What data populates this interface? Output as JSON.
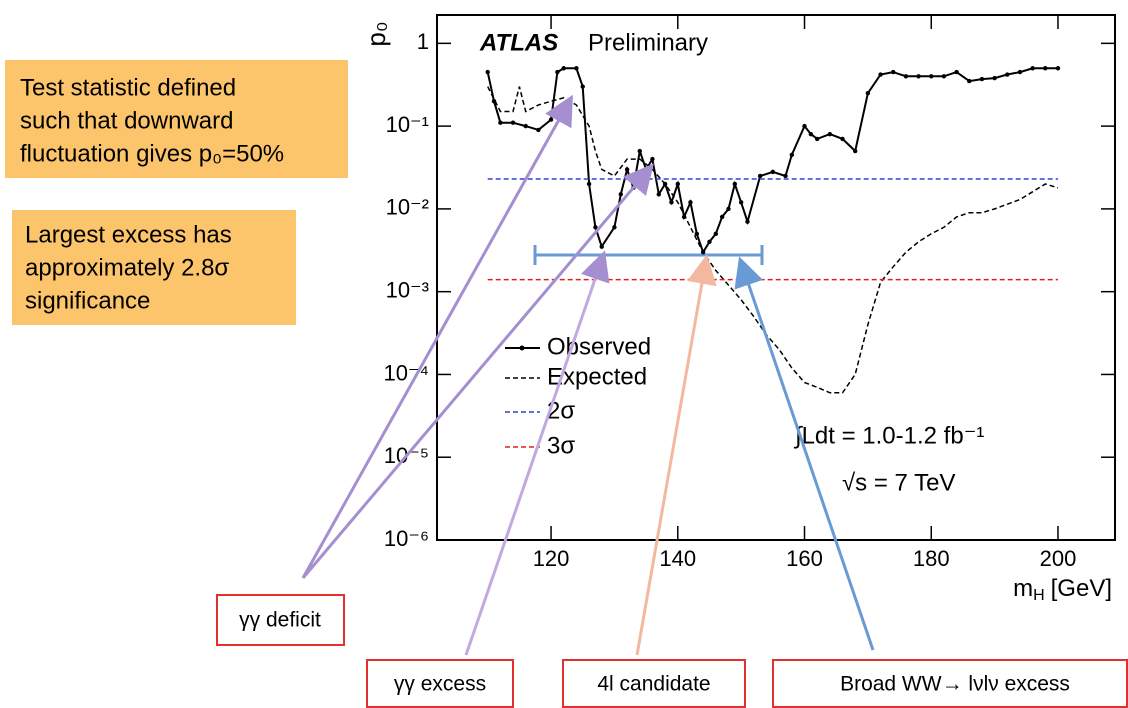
{
  "chart_data": {
    "type": "line",
    "y_label": "p₀",
    "x_label": {
      "symbol": "m",
      "subscript": "H",
      "unit": "[GeV]"
    },
    "experiment": "ATLAS",
    "status": "Preliminary",
    "luminosity": "∫Ldt = 1.0-1.2 fb⁻¹",
    "energy": "√s = 7 TeV",
    "xlim": [
      102,
      209
    ],
    "xticks": [
      120,
      140,
      160,
      180,
      200
    ],
    "ylim": [
      1e-06,
      2.2
    ],
    "log_y": true,
    "yticks": [
      {
        "value": 1,
        "label": "1"
      },
      {
        "value": 0.1,
        "label": "10⁻¹"
      },
      {
        "value": 0.01,
        "label": "10⁻²"
      },
      {
        "value": 0.001,
        "label": "10⁻³"
      },
      {
        "value": 0.0001,
        "label": "10⁻⁴"
      },
      {
        "value": 1e-05,
        "label": "10⁻⁵"
      },
      {
        "value": 1e-06,
        "label": "10⁻⁶"
      }
    ],
    "series": [
      {
        "name": "Observed",
        "color": "#000000",
        "style": "solid-markers",
        "x": [
          110,
          111,
          112,
          114,
          116,
          118,
          120,
          121,
          122,
          124,
          125,
          126,
          127,
          128,
          130,
          131,
          132,
          133,
          134,
          135,
          136,
          137,
          138,
          139,
          140,
          141,
          142,
          143,
          144,
          145,
          146,
          147,
          148,
          149,
          150,
          151,
          153,
          155,
          157,
          158,
          160,
          161,
          162,
          164,
          166,
          168,
          170,
          172,
          174,
          176,
          178,
          180,
          182,
          184,
          186,
          188,
          190,
          192,
          194,
          196,
          198,
          200
        ],
        "values": [
          0.45,
          0.2,
          0.11,
          0.11,
          0.1,
          0.09,
          0.12,
          0.45,
          0.5,
          0.5,
          0.3,
          0.02,
          0.006,
          0.0035,
          0.006,
          0.015,
          0.03,
          0.018,
          0.05,
          0.03,
          0.04,
          0.015,
          0.02,
          0.012,
          0.02,
          0.008,
          0.012,
          0.005,
          0.003,
          0.004,
          0.005,
          0.008,
          0.01,
          0.02,
          0.012,
          0.007,
          0.025,
          0.028,
          0.025,
          0.045,
          0.1,
          0.08,
          0.07,
          0.08,
          0.07,
          0.05,
          0.25,
          0.42,
          0.45,
          0.4,
          0.4,
          0.4,
          0.4,
          0.45,
          0.35,
          0.37,
          0.38,
          0.42,
          0.45,
          0.5,
          0.5,
          0.5
        ]
      },
      {
        "name": "Expected",
        "color": "#000000",
        "style": "dashed",
        "x": [
          110,
          112,
          114,
          115,
          116,
          118,
          120,
          122,
          124,
          126,
          127,
          128,
          130,
          132,
          134,
          136,
          138,
          140,
          142,
          144,
          146,
          148,
          150,
          152,
          154,
          156,
          158,
          160,
          162,
          164,
          166,
          168,
          170,
          172,
          174,
          176,
          178,
          180,
          182,
          184,
          186,
          188,
          190,
          194,
          198,
          200
        ],
        "values": [
          0.3,
          0.15,
          0.15,
          0.3,
          0.15,
          0.18,
          0.2,
          0.22,
          0.18,
          0.1,
          0.05,
          0.03,
          0.025,
          0.04,
          0.04,
          0.03,
          0.02,
          0.012,
          0.006,
          0.003,
          0.0018,
          0.0012,
          0.0008,
          0.0005,
          0.0003,
          0.0002,
          0.00012,
          8e-05,
          7e-05,
          6e-05,
          6e-05,
          0.0001,
          0.0004,
          0.0013,
          0.002,
          0.003,
          0.004,
          0.005,
          0.006,
          0.008,
          0.009,
          0.009,
          0.01,
          0.013,
          0.02,
          0.018
        ]
      },
      {
        "name": "2σ",
        "color": "#3344cc",
        "style": "dashed",
        "x": [
          110,
          200
        ],
        "values": [
          0.023,
          0.023
        ]
      },
      {
        "name": "3σ",
        "color": "#e02020",
        "style": "dashed",
        "x": [
          110,
          200
        ],
        "values": [
          0.0014,
          0.0014
        ]
      }
    ]
  },
  "notes": [
    {
      "lines": [
        "Test statistic defined",
        "such that downward",
        "fluctuation gives p₀=50%"
      ]
    },
    {
      "lines": [
        "Largest excess has",
        "approximately 2.8σ",
        "significance"
      ]
    }
  ],
  "callouts": [
    "γγ deficit",
    "γγ excess",
    "4l candidate",
    "Broad WW→ lνlν excess"
  ]
}
